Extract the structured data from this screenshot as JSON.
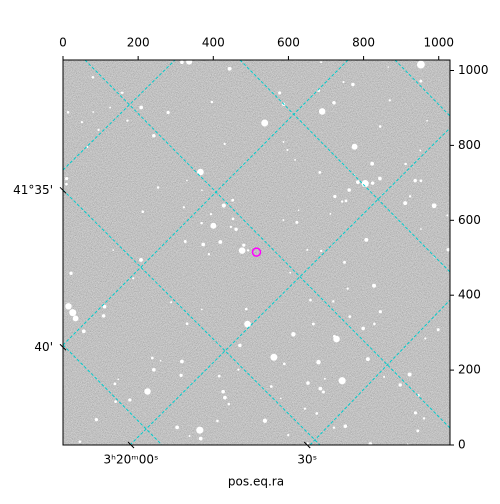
{
  "chart_data": {
    "type": "image",
    "xlim": [
      0,
      1030
    ],
    "ylim": [
      0,
      1028
    ],
    "xticks": [
      0,
      200,
      400,
      600,
      800,
      1000
    ],
    "yticks": [
      0,
      200,
      400,
      600,
      800,
      1000
    ],
    "ra_ticks": [
      {
        "value": 181,
        "label": "3ʰ20ᵐ00ˢ"
      },
      {
        "value": 650,
        "label": "30ˢ"
      }
    ],
    "dec_ticks": [
      {
        "value": 680,
        "label": "41°35'"
      },
      {
        "value": 261,
        "label": "40'"
      }
    ],
    "xlabel": "pos.eq.ra",
    "marker": {
      "x": 515,
      "y": 515,
      "color": "#ff00ff"
    },
    "grid_color": "#00cccc"
  }
}
